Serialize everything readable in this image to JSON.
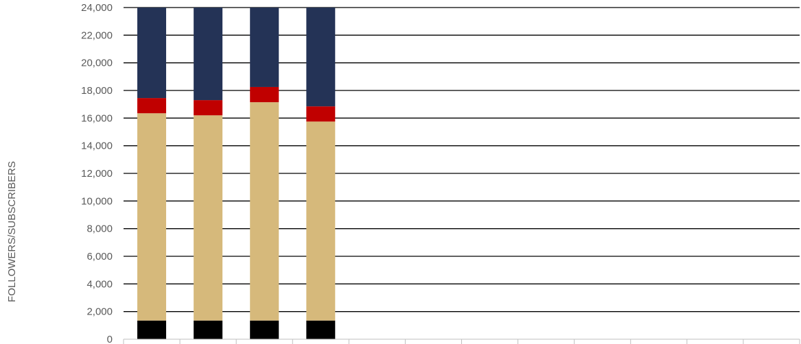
{
  "chart_data": {
    "type": "bar",
    "stacked": true,
    "ylabel": "FOLLOWERS/SUBSCRIBERS",
    "ylim": [
      0,
      24000
    ],
    "y_ticks": [
      "0",
      "2,000",
      "4,000",
      "6,000",
      "8,000",
      "10,000",
      "12,000",
      "14,000",
      "16,000",
      "18,000",
      "20,000",
      "22,000",
      "24,000"
    ],
    "grid": true,
    "category_count": 12,
    "series": [
      {
        "color": "#000000",
        "values": [
          1350,
          1350,
          1350,
          1350,
          null,
          null,
          null,
          null,
          null,
          null,
          null,
          null
        ]
      },
      {
        "color": "#d6b97b",
        "values": [
          15000,
          14850,
          15800,
          14400,
          null,
          null,
          null,
          null,
          null,
          null,
          null,
          null
        ]
      },
      {
        "color": "#c00000",
        "values": [
          1100,
          1100,
          1100,
          1100,
          null,
          null,
          null,
          null,
          null,
          null,
          null,
          null
        ]
      },
      {
        "color": "#243356",
        "values": [
          6550,
          6700,
          5750,
          7150,
          null,
          null,
          null,
          null,
          null,
          null,
          null,
          null
        ]
      }
    ]
  }
}
